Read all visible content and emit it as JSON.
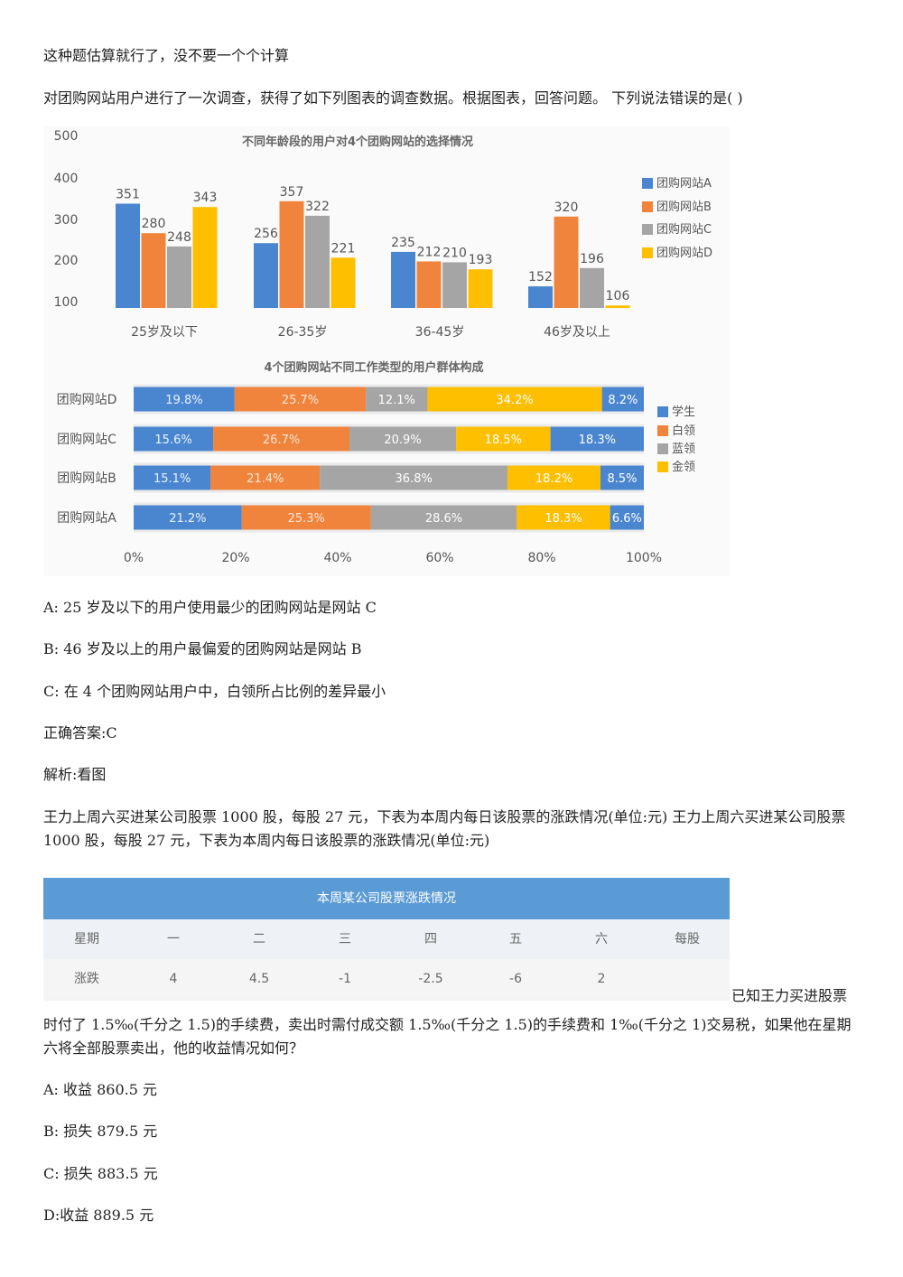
{
  "intro_note": "这种题估算就行了，没不要一个个计算",
  "q1": {
    "stem": "对团购网站用户进行了一次调查，获得了如下列图表的调查数据。根据图表，回答问题。 下列说法错误的是( )",
    "option_a": "A: 25 岁及以下的用户使用最少的团购网站是网站 C",
    "option_b": "B: 46 岁及以上的用户最偏爱的团购网站是网站 B",
    "option_c": "C: 在 4 个团购网站用户中，白领所占比例的差异最小",
    "answer": "正确答案:C",
    "analysis": "解析:看图"
  },
  "q2": {
    "stem": "王力上周六买进某公司股票 1000 股，每股 27 元，下表为本周内每日该股票的涨跌情况(单位:元) 王力上周六买进某公司股票 1000 股，每股 27 元，下表为本周内每日该股票的涨跌情况(单位:元)",
    "stem_tail_inline": "已知王力买进股票",
    "stem_continuation": "时付了 1.5‰(千分之 1.5)的手续费，卖出时需付成交额 1.5‰(千分之 1.5)的手续费和 1‰(千分之 1)交易税，如果他在星期六将全部股票卖出，他的收益情况如何？",
    "option_a": "A: 收益 860.5 元",
    "option_b": "B: 损失 879.5 元",
    "option_c": "C: 损失 883.5 元",
    "option_d": "D:收益 889.5 元"
  },
  "stock_table": {
    "title": "本周某公司股票涨跌情况",
    "header": [
      "星期",
      "一",
      "二",
      "三",
      "四",
      "五",
      "六",
      "每股"
    ],
    "row": [
      "涨跌",
      "4",
      "4.5",
      "-1",
      "-2.5",
      "-6",
      "2",
      ""
    ]
  },
  "colors": {
    "site_a": "#4a86d0",
    "site_b": "#f0843c",
    "site_c": "#a5a5a5",
    "site_d": "#fdbf00",
    "student": "#4a86d0",
    "white_collar": "#f0843c",
    "blue_collar": "#a5a5a5",
    "gold_collar": "#fdbf00"
  },
  "chart_data": [
    {
      "type": "bar",
      "title": "不同年龄段的用户对4个团购网站的选择情况",
      "categories": [
        "25岁及以下",
        "26-35岁",
        "36-45岁",
        "46岁及以上"
      ],
      "series": [
        {
          "name": "团购网站A",
          "values": [
            351,
            256,
            235,
            152
          ]
        },
        {
          "name": "团购网站B",
          "values": [
            280,
            357,
            212,
            320
          ]
        },
        {
          "name": "团购网站C",
          "values": [
            248,
            322,
            210,
            196
          ]
        },
        {
          "name": "团购网站D",
          "values": [
            343,
            221,
            193,
            106
          ]
        }
      ],
      "y_ticks": [
        "500",
        "400",
        "300",
        "200",
        "100"
      ],
      "ylim": [
        100,
        500
      ],
      "legend": "right",
      "grid": false
    },
    {
      "type": "bar",
      "orientation": "horizontal-stacked-100",
      "title": "4个团购网站不同工作类型的用户群体构成",
      "categories": [
        "团购网站D",
        "团购网站C",
        "团购网站B",
        "团购网站A"
      ],
      "series": [
        {
          "name": "学生",
          "values": [
            19.8,
            15.6,
            15.1,
            21.2
          ]
        },
        {
          "name": "白领",
          "values": [
            25.7,
            26.7,
            21.4,
            25.3
          ]
        },
        {
          "name": "蓝领",
          "values": [
            12.1,
            20.9,
            36.8,
            28.6
          ]
        },
        {
          "name": "金领",
          "values": [
            34.2,
            18.5,
            18.2,
            18.3
          ]
        },
        {
          "name": "",
          "values": [
            8.2,
            18.3,
            8.5,
            6.6
          ]
        }
      ],
      "x_ticks": [
        "0%",
        "20%",
        "40%",
        "60%",
        "80%",
        "100%"
      ],
      "xlim": [
        0,
        100
      ],
      "legend": "right",
      "grid": false
    }
  ]
}
